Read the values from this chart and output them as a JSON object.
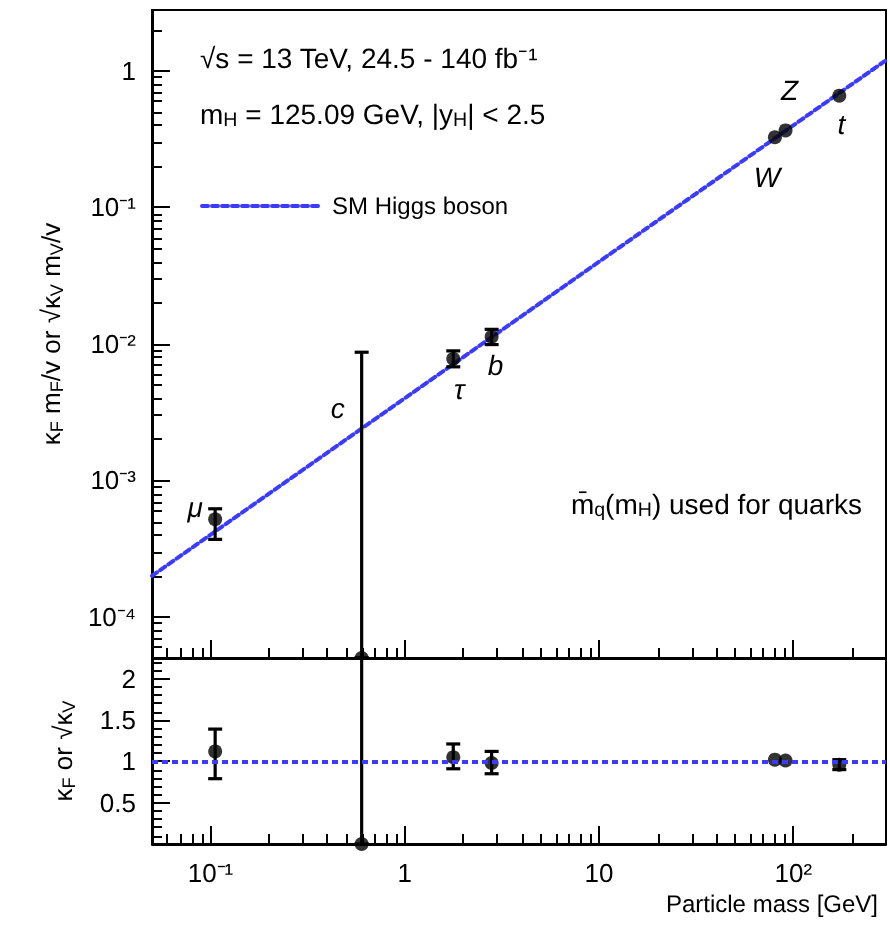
{
  "chart_data": [
    {
      "type": "scatter",
      "ylabel": "κ$_{F}$ m$_{F}$/v or √κ$_{V}$ m$_{V}$/v",
      "log": "xy",
      "xlim": [
        0.05,
        300
      ],
      "ylim": [
        5e-05,
        2.8
      ],
      "xticks": [
        {
          "value": 0.1,
          "label": null
        },
        {
          "value": 1,
          "label": null
        },
        {
          "value": 10,
          "label": null
        },
        {
          "value": 100,
          "label": null
        }
      ],
      "yticks": [
        {
          "value": 0.0001,
          "label": "10⁻⁴"
        },
        {
          "value": 0.001,
          "label": "10⁻³"
        },
        {
          "value": 0.01,
          "label": "10⁻²"
        },
        {
          "value": 0.1,
          "label": "10⁻¹"
        },
        {
          "value": 1,
          "label": "1"
        }
      ],
      "tick_labels": "y",
      "grid": false,
      "legend": "top left",
      "marker": "circle",
      "series": [
        {
          "name": "SM Higgs boson",
          "type": "line",
          "color": "#3b3bff",
          "line_style": "dashed",
          "marker": "none",
          "x": [
            0.05,
            300
          ],
          "values": [
            0.0002,
            1.2
          ]
        },
        {
          "color": "#000000",
          "x": [
            0.1057,
            0.6,
            1.777,
            2.8,
            80.4,
            91.2,
            172.5
          ],
          "values": [
            0.00052,
            5e-05,
            0.0078,
            0.0113,
            0.327,
            0.367,
            0.66
          ],
          "errors": [
            [
              0.00037,
              0.00062
            ],
            [
              5e-05,
              0.0087
            ],
            [
              0.0068,
              0.0089
            ],
            [
              0.0099,
              0.0128
            ],
            null,
            null,
            null
          ]
        }
      ],
      "annotations": [
        "√s = 13 TeV, 24.5 - 140 fb⁻¹",
        "m$_{H}$ = 125.09 GeV, |y$_{H}$| < 2.5",
        "m̄$_{q}$(m$_{H}$) used for quarks",
        {
          "text": "μ",
          "x": 0.1057,
          "y": 0.00052
        },
        {
          "text": "c",
          "x": 0.6,
          "y": 0.00244
        },
        {
          "text": "τ",
          "x": 1.777,
          "y": 0.0078
        },
        {
          "text": "b",
          "x": 2.8,
          "y": 0.0113
        },
        {
          "text": "W",
          "x": 80.4,
          "y": 0.327
        },
        {
          "text": "Z",
          "x": 91.2,
          "y": 0.367
        },
        {
          "text": "t",
          "x": 172.5,
          "y": 0.66
        }
      ]
    },
    {
      "type": "scatter",
      "xlabel": "Particle mass [GeV]",
      "ylabel": "κ$_{F}$ or √κ$_{V}$",
      "log": "x",
      "xlim": [
        0.05,
        300
      ],
      "ylim": [
        0,
        2.25
      ],
      "xticks": [
        {
          "value": 0.1,
          "label": "10⁻¹"
        },
        {
          "value": 1,
          "label": "1"
        },
        {
          "value": 10,
          "label": "10"
        },
        {
          "value": 100,
          "label": "10²"
        }
      ],
      "yticks": [
        0.5,
        1,
        1.5,
        2
      ],
      "grid": false,
      "marker": "circle",
      "series": [
        {
          "color": "#000000",
          "x": [
            0.1057,
            0.6,
            1.777,
            2.8,
            80.4,
            91.2,
            172.5
          ],
          "values": [
            1.12,
            0,
            1.05,
            0.98,
            1.02,
            1.01,
            0.96
          ],
          "errors": [
            [
              0.79,
              1.39
            ],
            [
              0,
              2.25
            ],
            [
              0.91,
              1.21
            ],
            [
              0.85,
              1.12
            ],
            null,
            null,
            [
              0.9,
              1.02
            ]
          ]
        }
      ],
      "ref_lines": [
        {
          "axis": "y",
          "value": 1,
          "color": "#3b3bff",
          "line_style": "dashed"
        }
      ]
    }
  ]
}
